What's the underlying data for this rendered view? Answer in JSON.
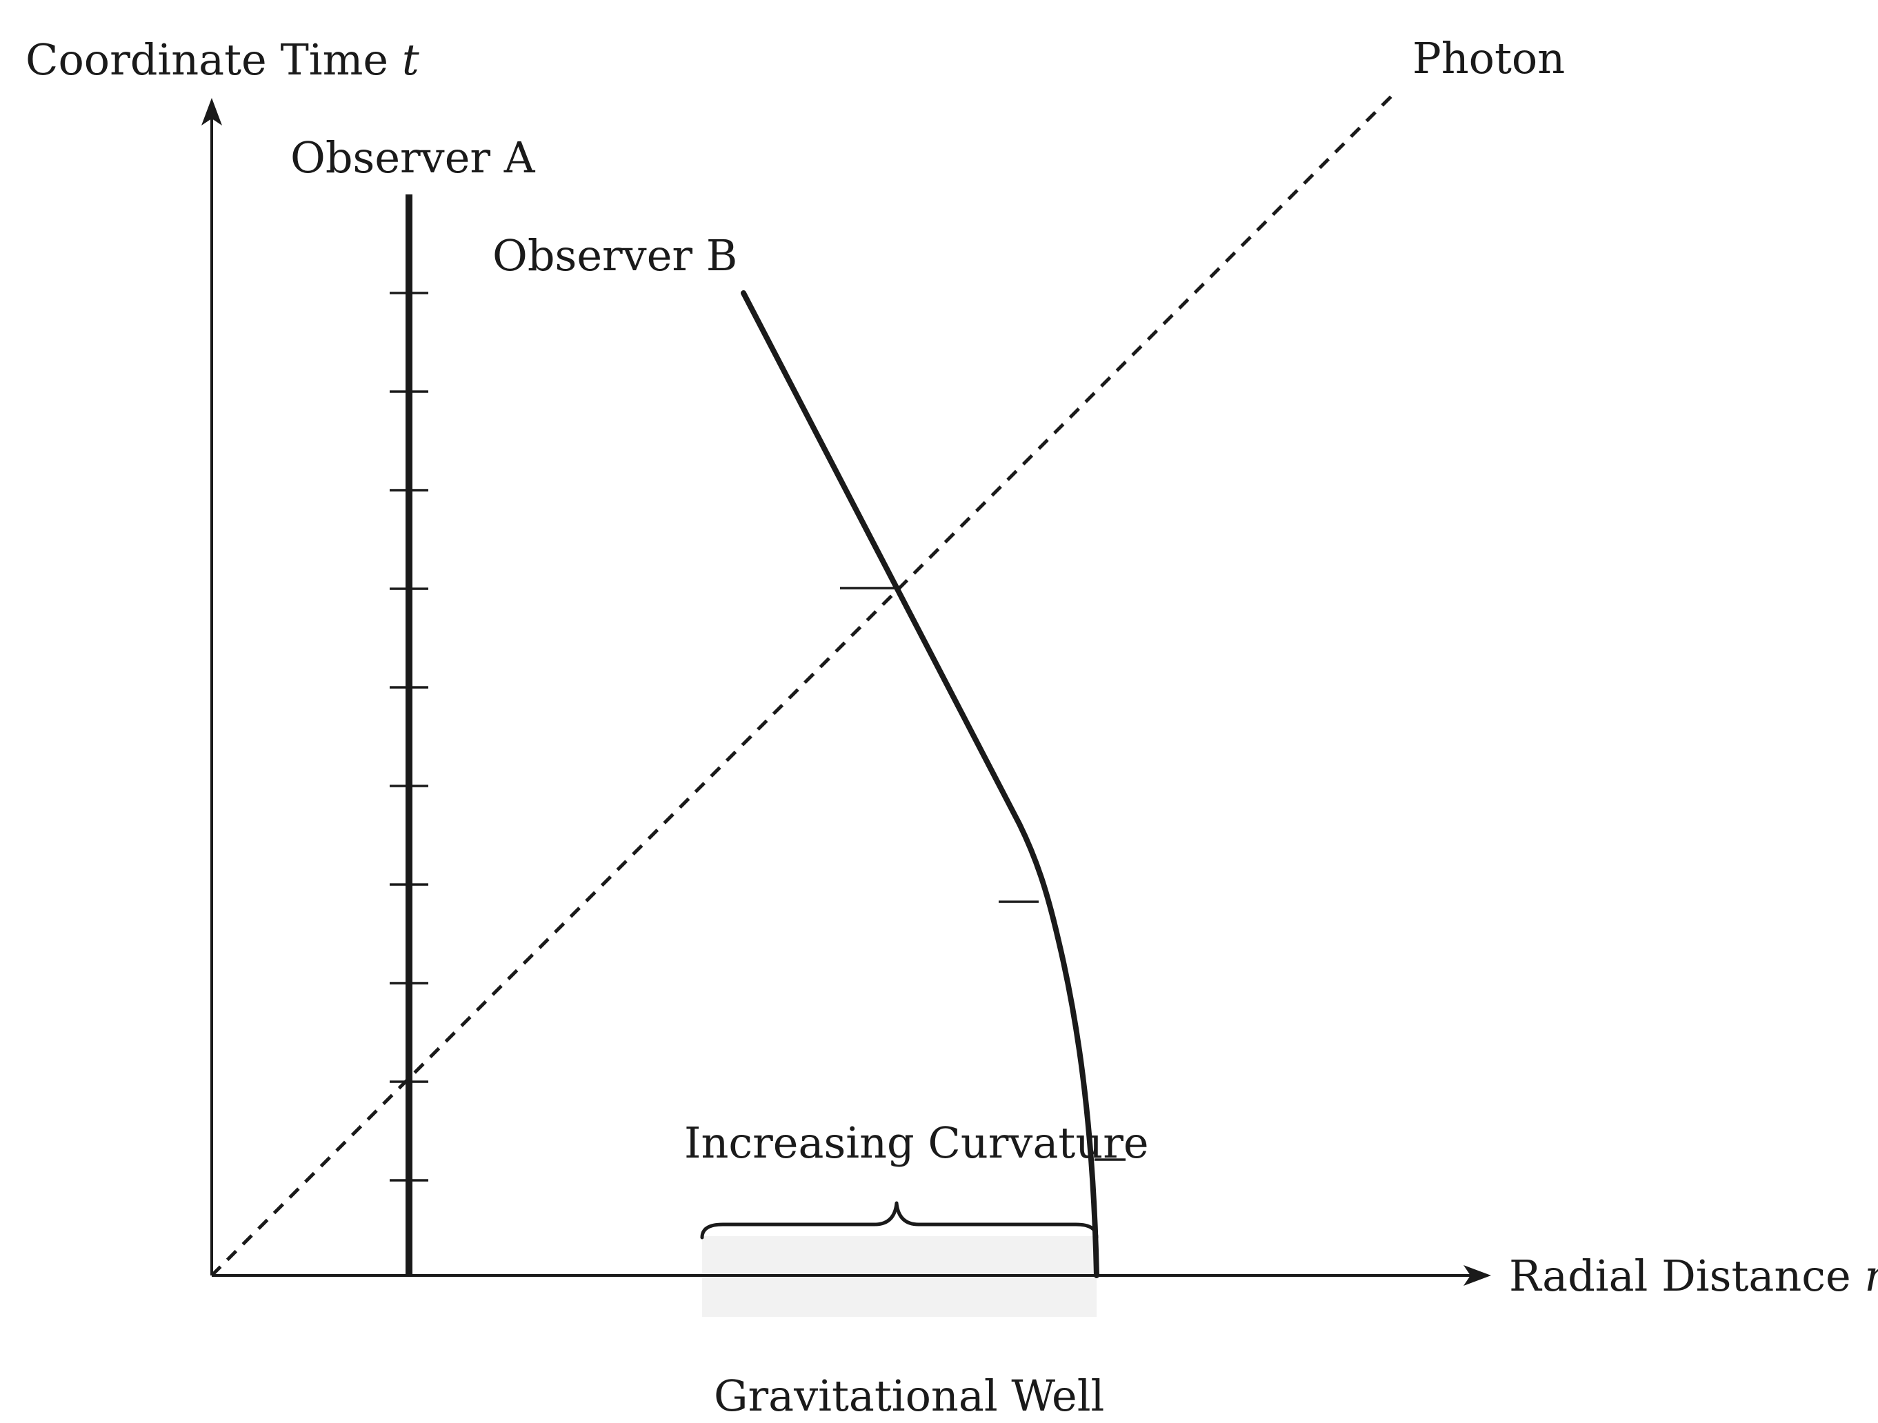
{
  "axes": {
    "y_label": "Coordinate Time",
    "y_var": "t",
    "x_label": "Radial Distance",
    "x_var": "r"
  },
  "labels": {
    "observer_a": "Observer A",
    "observer_b": "Observer B",
    "photon": "Photon",
    "curvature": "Increasing Curvature",
    "well": "Gravitational Well"
  },
  "colors": {
    "ink": "#1a1a1a",
    "well_fill": "#f2f2f2"
  },
  "observer_a_tick_count": 10,
  "observer_b_tick_count": 3
}
